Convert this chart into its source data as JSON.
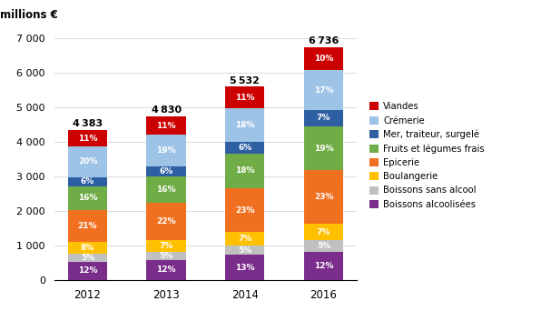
{
  "years": [
    "2012",
    "2013",
    "2014",
    "2016"
  ],
  "totals": [
    4383,
    4830,
    5532,
    6736
  ],
  "categories": [
    "Boissons alcoolisées",
    "Boissons sans alcool",
    "Boulangerie",
    "Epicerie",
    "Fruits et légumes frais",
    "Mer, traiteur, surgelé",
    "Crémerie",
    "Viandes"
  ],
  "colors": [
    "#7b2d8b",
    "#c0c0c0",
    "#ffc000",
    "#f07020",
    "#70ad47",
    "#2e5fa3",
    "#9dc3e6",
    "#cc0000"
  ],
  "percentages": {
    "Boissons alcoolisées": [
      12,
      12,
      13,
      12
    ],
    "Boissons sans alcool": [
      5,
      5,
      5,
      5
    ],
    "Boulangerie": [
      8,
      7,
      7,
      7
    ],
    "Epicerie": [
      21,
      22,
      23,
      23
    ],
    "Fruits et légumes frais": [
      16,
      16,
      18,
      19
    ],
    "Mer, traiteur, surgelé": [
      6,
      6,
      6,
      7
    ],
    "Crémerie": [
      20,
      19,
      18,
      17
    ],
    "Viandes": [
      11,
      11,
      11,
      10
    ]
  },
  "top_label": "millions €",
  "ylim": [
    0,
    7200
  ],
  "yticks": [
    0,
    1000,
    2000,
    3000,
    4000,
    5000,
    6000,
    7000
  ],
  "ytick_labels": [
    "0",
    "1 000",
    "2 000",
    "3 000",
    "4 000",
    "5 000",
    "6 000",
    "7 000"
  ],
  "legend_labels": [
    "Viandes",
    "Crémerie",
    "Mer, traiteur, surgelé",
    "Fruits et légumes frais",
    "Epicerie",
    "Boulangerie",
    "Boissons sans alcool",
    "Boissons alcoolisées"
  ],
  "legend_colors": [
    "#cc0000",
    "#9dc3e6",
    "#2e5fa3",
    "#70ad47",
    "#f07020",
    "#ffc000",
    "#c0c0c0",
    "#7b2d8b"
  ],
  "total_labels": [
    "4 383",
    "4 830",
    "5 532",
    "6 736"
  ]
}
